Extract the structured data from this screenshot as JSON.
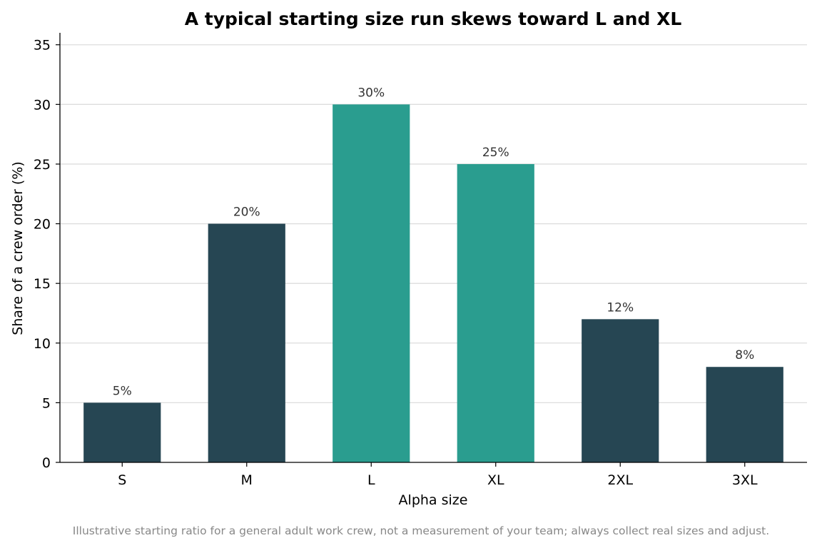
{
  "chart_data": {
    "type": "bar",
    "title": "A typical starting size run skews toward L and XL",
    "xlabel": "Alpha size",
    "ylabel": "Share of a crew order (%)",
    "categories": [
      "S",
      "M",
      "L",
      "XL",
      "2XL",
      "3XL"
    ],
    "values": [
      5,
      20,
      30,
      25,
      12,
      8
    ],
    "data_labels": [
      "5%",
      "20%",
      "30%",
      "25%",
      "12%",
      "8%"
    ],
    "ylim": [
      0,
      36
    ],
    "yticks": [
      0,
      5,
      10,
      15,
      20,
      25,
      30,
      35
    ],
    "grid": "horizontal",
    "colors": {
      "default": "#264653",
      "highlight": "#2a9d8f",
      "highlighted_categories": [
        "L",
        "XL"
      ]
    }
  },
  "caption": "Illustrative starting ratio for a general adult work crew, not a measurement of your team; always collect real sizes and adjust."
}
